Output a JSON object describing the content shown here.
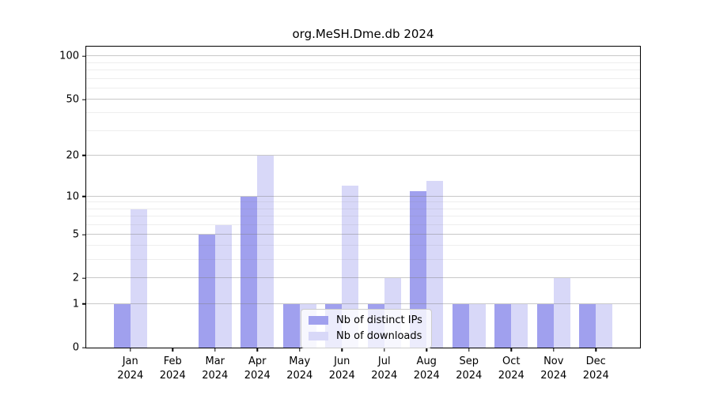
{
  "chart_data": {
    "type": "bar",
    "title": "org.MeSH.Dme.db 2024",
    "categories": [
      "Jan 2024",
      "Feb 2024",
      "Mar 2024",
      "Apr 2024",
      "May 2024",
      "Jun 2024",
      "Jul 2024",
      "Aug 2024",
      "Sep 2024",
      "Oct 2024",
      "Nov 2024",
      "Dec 2024"
    ],
    "series": [
      {
        "name": "Nb of distinct IPs",
        "color": "#a0a0ee",
        "values": [
          1,
          0,
          5,
          10,
          1,
          1,
          1,
          11,
          1,
          1,
          1,
          1
        ]
      },
      {
        "name": "Nb of downloads",
        "color": "#d8d8f8",
        "values": [
          8,
          0,
          6,
          20,
          1,
          12,
          2,
          13,
          1,
          1,
          2,
          1
        ]
      }
    ],
    "xlabel": "",
    "ylabel": "",
    "yscale": "log1p",
    "yticks": [
      0,
      1,
      2,
      5,
      10,
      20,
      50,
      100
    ],
    "minor_yticks": [
      3,
      4,
      6,
      7,
      8,
      9,
      30,
      40,
      60,
      70,
      80,
      90
    ],
    "ylim": [
      0,
      117
    ],
    "grid": "horizontal-major-and-minor",
    "legend_position": "inside-bottom-center",
    "frame": "full-box-black"
  }
}
